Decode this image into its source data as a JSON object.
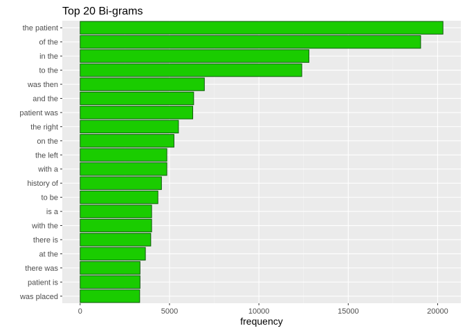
{
  "chart_data": {
    "type": "bar",
    "orientation": "horizontal",
    "title": "Top 20 Bi-grams",
    "xlabel": "frequency",
    "ylabel": "",
    "xlim": [
      -1000,
      21300
    ],
    "xticks": [
      0,
      5000,
      10000,
      15000,
      20000
    ],
    "grid": true,
    "categories": [
      "the patient",
      "of the",
      "in the",
      "to the",
      "was then",
      "and the",
      "patient was",
      "the right",
      "on the",
      "the left",
      "with a",
      "history of",
      "to be",
      "is a",
      "with the",
      "there is",
      "at the",
      "there was",
      "patient is",
      "was placed"
    ],
    "values": [
      20300,
      19050,
      12800,
      12400,
      6950,
      6350,
      6300,
      5500,
      5250,
      4850,
      4850,
      4550,
      4350,
      4000,
      4000,
      3950,
      3650,
      3350,
      3350,
      3330
    ],
    "colors": {
      "bar_fill": "#1ACC00",
      "bar_stroke": "#0F5A0A",
      "panel_bg": "#EBEBEB",
      "grid_major": "#FFFFFF",
      "grid_minor": "#F5F5F5",
      "tick_text": "#4D4D4D",
      "axis_title": "#000000"
    }
  }
}
